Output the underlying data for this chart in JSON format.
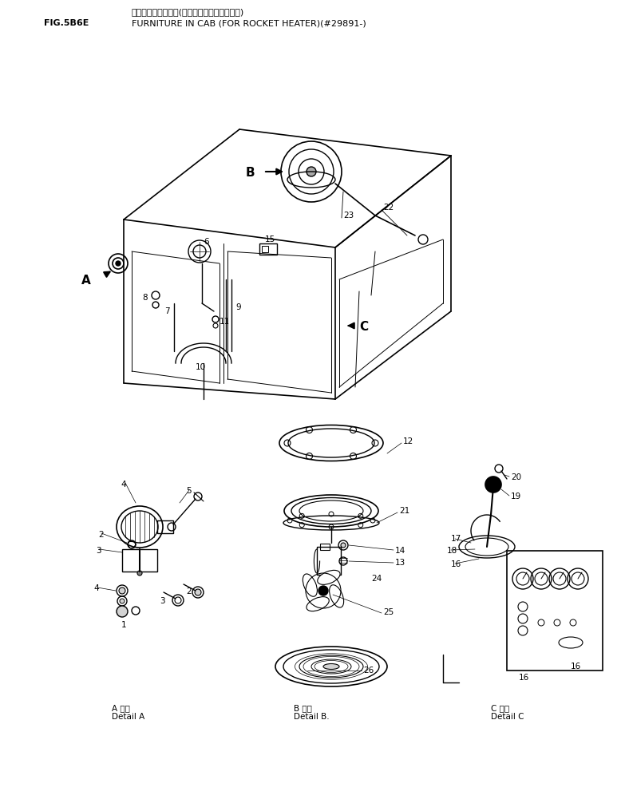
{
  "title_japanese": "キャブ　フジクビ　(ロケット　ヒータ　ヨウ)",
  "title_english": "FURNITURE IN CAB (FOR ROCKET HEATER)(#29891-)",
  "fig_label": "FIG.5B6E",
  "bg_color": "#ffffff",
  "line_color": "#000000",
  "figsize": [
    7.78,
    10.16
  ],
  "dpi": 100
}
